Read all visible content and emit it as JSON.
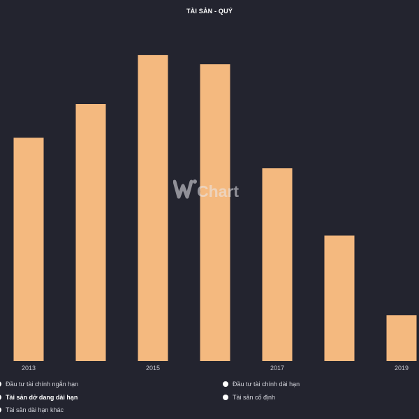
{
  "chart_data": {
    "type": "bar",
    "title": "TÀI SẢN - QUÝ",
    "x_tick_labels": [
      "2013",
      "2015",
      "2017",
      "2019"
    ],
    "bar_color": "#f4b97f",
    "background": "#23242f",
    "series": [
      {
        "values": [
          73,
          84,
          100,
          97,
          63,
          41,
          15
        ]
      }
    ],
    "ylim": [
      0,
      105
    ],
    "grid": false,
    "legend_position": "bottom"
  },
  "watermark_text": "WiChart",
  "legend": {
    "items": [
      {
        "label": "Đầu tư tài chính ngắn hạn",
        "color": "#ffffff",
        "active": false
      },
      {
        "label": "Đầu tư tài chính dài hạn",
        "color": "#ffffff",
        "active": false
      },
      {
        "label": "Tài sản dở dang dài hạn",
        "color": "#ffffff",
        "active": true
      },
      {
        "label": "Tài sản cố định",
        "color": "#ffffff",
        "active": false
      },
      {
        "label": "Tài sản dài hạn khác",
        "color": "#ffffff",
        "active": false
      }
    ]
  }
}
